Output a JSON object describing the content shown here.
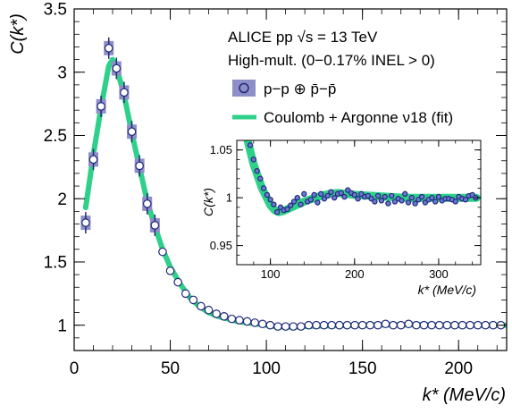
{
  "chart_data": [
    {
      "type": "scatter",
      "panel": "main",
      "xlabel": "k* (MeV/c)",
      "ylabel": "C(k*)",
      "xlim": [
        0,
        225
      ],
      "ylim": [
        0.8,
        3.5
      ],
      "xticks": [
        "0",
        "50",
        "100",
        "150",
        "200"
      ],
      "yticks": [
        "1",
        "1.5",
        "2",
        "2.5",
        "3",
        "3.5"
      ],
      "text_lines": [
        "ALICE pp √s = 13 TeV",
        "High-mult. (0−0.17% INEL > 0)"
      ],
      "series": [
        {
          "name": "p−p ⊕ p̄−p̄",
          "color": "#1f2a7a",
          "syst_color": "#8f8fc8",
          "x": [
            6,
            10,
            14,
            18,
            22,
            26,
            30,
            34,
            38,
            42,
            46,
            50,
            54,
            58,
            62,
            66,
            70,
            74,
            78,
            82,
            86,
            90,
            94,
            98,
            102,
            106,
            110,
            114,
            118,
            122,
            126,
            130,
            134,
            138,
            142,
            146,
            150,
            154,
            158,
            162,
            166,
            170,
            174,
            178,
            182,
            186,
            190,
            194,
            198,
            202,
            206,
            210,
            214,
            218,
            222
          ],
          "y": [
            1.81,
            2.31,
            2.73,
            3.19,
            3.03,
            2.84,
            2.53,
            2.26,
            1.96,
            1.79,
            1.58,
            1.43,
            1.34,
            1.25,
            1.2,
            1.15,
            1.12,
            1.09,
            1.07,
            1.05,
            1.04,
            1.03,
            1.02,
            1.01,
            1.0,
            0.99,
            0.99,
            0.99,
            0.99,
            1.0,
            1.0,
            1.0,
            1.0,
            1.0,
            1.0,
            1.0,
            1.0,
            1.0,
            1.0,
            1.01,
            1.0,
            1.0,
            1.01,
            1.0,
            1.0,
            1.0,
            1.0,
            1.0,
            1.0,
            1.0,
            1.0,
            1.0,
            1.0,
            1.0,
            1.0
          ]
        },
        {
          "name": "Coulomb + Argonne ν18 (fit)",
          "color": "#2fd08a",
          "x": [
            6,
            10,
            14,
            18,
            20,
            22,
            26,
            30,
            34,
            38,
            42,
            46,
            50,
            55,
            60,
            65,
            70,
            75,
            80,
            85,
            90,
            95,
            100,
            105,
            110,
            115,
            120,
            130,
            140,
            150,
            160,
            180,
            200,
            225
          ],
          "y": [
            1.93,
            2.35,
            2.72,
            3.05,
            3.1,
            3.04,
            2.82,
            2.52,
            2.25,
            1.98,
            1.78,
            1.6,
            1.46,
            1.33,
            1.22,
            1.15,
            1.1,
            1.07,
            1.05,
            1.03,
            1.02,
            1.01,
            1.0,
            0.99,
            0.985,
            0.987,
            0.99,
            0.995,
            0.998,
            1.0,
            1.002,
            1.003,
            1.0,
            1.0
          ]
        }
      ]
    },
    {
      "type": "scatter",
      "panel": "inset",
      "xlabel": "k* (MeV/c)",
      "ylabel": "C(k*)",
      "xlim": [
        60,
        350
      ],
      "ylim": [
        0.93,
        1.06
      ],
      "xticks": [
        "100",
        "200",
        "300"
      ],
      "yticks": [
        "0.95",
        "1",
        "1.05"
      ],
      "series": [
        {
          "name": "p−p ⊕ p̄−p̄",
          "color": "#1f2a7a",
          "x": [
            76,
            80,
            84,
            88,
            92,
            96,
            100,
            104,
            108,
            112,
            116,
            120,
            124,
            128,
            132,
            136,
            140,
            144,
            148,
            152,
            156,
            160,
            164,
            168,
            172,
            176,
            180,
            184,
            188,
            192,
            196,
            200,
            204,
            208,
            212,
            216,
            220,
            224,
            228,
            232,
            236,
            240,
            244,
            248,
            252,
            256,
            260,
            264,
            268,
            272,
            276,
            280,
            284,
            288,
            292,
            296,
            300,
            304,
            308,
            312,
            316,
            320,
            324,
            328,
            332,
            336,
            340,
            344
          ],
          "y": [
            1.055,
            1.04,
            1.028,
            1.02,
            1.01,
            1.003,
            0.998,
            0.993,
            0.985,
            0.99,
            0.987,
            0.988,
            0.992,
            0.996,
            1.0,
            0.993,
            1.004,
            0.996,
            0.998,
            1.003,
            0.995,
            1.004,
            0.999,
            1.002,
            1.006,
            1.0,
            1.004,
            1.005,
            1.001,
            1.008,
            1.005,
            1.003,
            0.999,
            1.004,
            1.001,
            1.002,
            0.999,
            0.996,
            1.002,
            0.997,
            1.001,
            0.994,
            1.002,
            0.996,
            0.999,
            0.997,
            1.004,
            0.995,
            1.0,
            0.994,
            0.998,
            1.001,
            0.995,
            0.998,
            1.0,
            0.996,
            1.001,
            0.997,
            0.999,
            0.999,
            0.998,
            0.996,
            1.001,
            0.999,
            0.998,
            1.002,
            1.003,
            1.0
          ]
        },
        {
          "name": "Coulomb + Argonne ν18 (fit)",
          "color": "#2fd08a",
          "x": [
            70,
            80,
            90,
            100,
            105,
            110,
            115,
            120,
            130,
            140,
            150,
            160,
            170,
            180,
            190,
            200,
            220,
            240,
            260,
            280,
            300,
            320,
            345
          ],
          "y": [
            1.07,
            1.035,
            1.01,
            0.992,
            0.987,
            0.985,
            0.986,
            0.988,
            0.992,
            0.996,
            0.999,
            1.002,
            1.004,
            1.005,
            1.004,
            1.003,
            1.002,
            1.001,
            1.0,
            1.0,
            1.0,
            1.0,
            1.0
          ]
        }
      ]
    }
  ]
}
